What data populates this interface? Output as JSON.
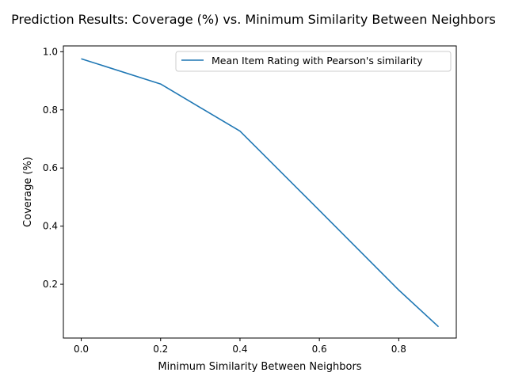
{
  "chart_data": {
    "type": "line",
    "title": "Prediction Results: Coverage (%) vs. Minimum Similarity Between Neighbors",
    "xlabel": "Minimum Similarity Between Neighbors",
    "ylabel": "Coverage (%)",
    "xlim": [
      -0.045,
      0.945
    ],
    "ylim": [
      0.015,
      1.02
    ],
    "xticks": [
      0.0,
      0.2,
      0.4,
      0.6,
      0.8
    ],
    "xtick_labels": [
      "0.0",
      "0.2",
      "0.4",
      "0.6",
      "0.8"
    ],
    "yticks": [
      0.2,
      0.4,
      0.6,
      0.8,
      1.0
    ],
    "ytick_labels": [
      "0.2",
      "0.4",
      "0.6",
      "0.8",
      "1.0"
    ],
    "grid": false,
    "legend": {
      "position": "upper right",
      "entries": [
        "Mean Item Rating with Pearson's similarity"
      ]
    },
    "series": [
      {
        "name": "Mean Item Rating with Pearson's similarity",
        "color": "#1f77b4",
        "x": [
          0.0,
          0.2,
          0.4,
          0.6,
          0.8,
          0.9
        ],
        "y": [
          0.976,
          0.889,
          0.727,
          0.454,
          0.18,
          0.054
        ]
      }
    ]
  }
}
